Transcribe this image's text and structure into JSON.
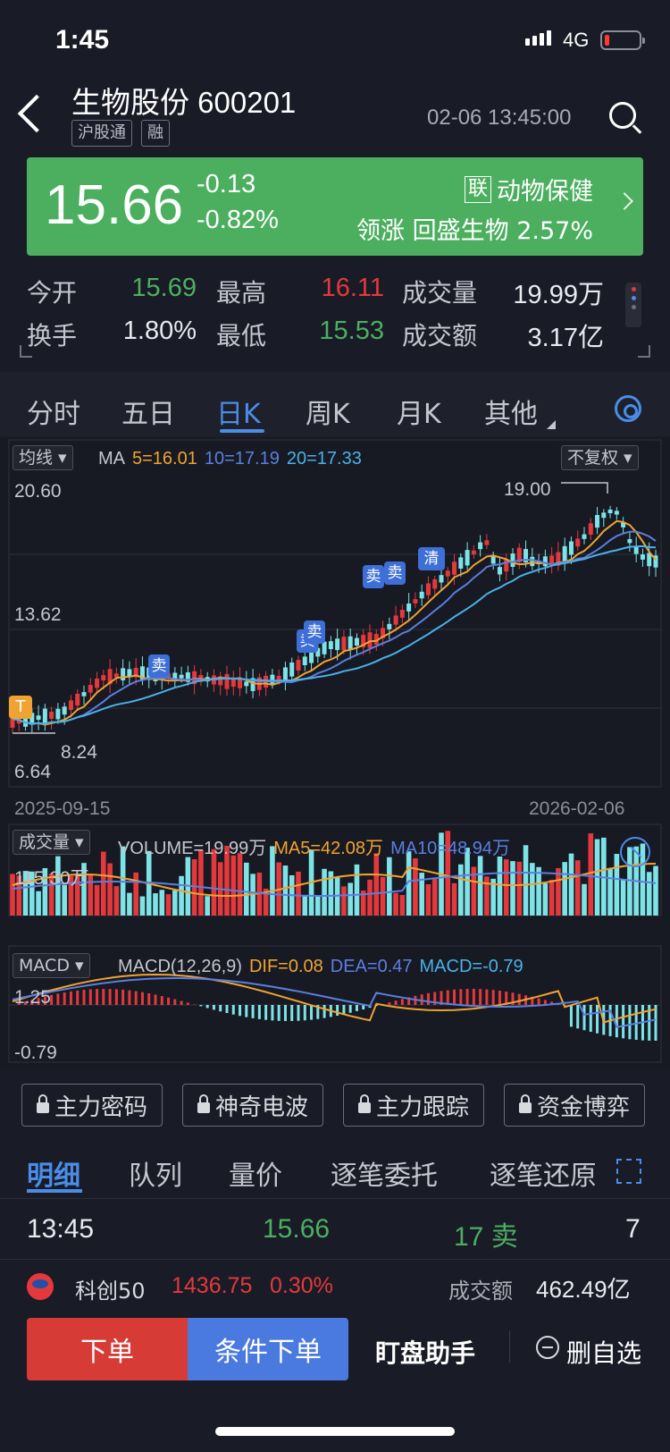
{
  "status": {
    "time": "1:45",
    "network": "4G"
  },
  "header": {
    "stock_name": "生物股份 600201",
    "tags": [
      "沪股通",
      "融"
    ],
    "datetime": "02-06 13:45:00"
  },
  "quote": {
    "price": "15.66",
    "change": "-0.13",
    "change_pct": "-0.82%",
    "sector_badge": "联",
    "sector": "动物保健",
    "leader_label": "领涨",
    "leader": "回盛生物",
    "leader_pct": "2.57%",
    "banner_color": "#4caf5f"
  },
  "stats": {
    "open_label": "今开",
    "open": "15.69",
    "high_label": "最高",
    "high": "16.11",
    "volume_label": "成交量",
    "volume": "19.99万",
    "turnover_label": "换手",
    "turnover": "1.80%",
    "low_label": "最低",
    "low": "15.53",
    "amount_label": "成交额",
    "amount": "3.17亿"
  },
  "tabs": [
    "分时",
    "五日",
    "日K",
    "周K",
    "月K",
    "其他"
  ],
  "active_tab": "日K",
  "kline": {
    "indicator_chip": "均线",
    "ma_label": "MA",
    "ma5": "5=16.01",
    "ma10": "10=17.19",
    "ma20": "20=17.33",
    "adjust_chip": "不复权",
    "y_top": "20.60",
    "y_mid": "13.62",
    "y_bottom": "6.64",
    "max_marker": "19.00",
    "min_marker": "8.24",
    "date_start": "2025-09-15",
    "date_end": "2026-02-06",
    "t_badge": "T",
    "sell_label": "卖",
    "clear_label": "清",
    "colors": {
      "up": "#e4393c",
      "down": "#7ee3e6",
      "ma5": "#f0a330",
      "ma10": "#5b7fe0",
      "ma20": "#4ab1e8"
    }
  },
  "volume": {
    "chip": "成交量",
    "volume_text": "VOLUME=19.99万",
    "ma5_text": "MA5=42.08万",
    "ma10_text": "MA10=48.94万",
    "y_max": "115.30万"
  },
  "macd": {
    "chip": "MACD",
    "params": "MACD(12,26,9)",
    "dif": "DIF=0.08",
    "dea": "DEA=0.47",
    "macd": "MACD=-0.79",
    "y_top": "1.25",
    "y_bottom": "-0.79"
  },
  "tools": [
    "主力密码",
    "神奇电波",
    "主力跟踪",
    "资金博弈"
  ],
  "detail_tabs": [
    "明细",
    "队列",
    "量价",
    "逐笔委托",
    "逐笔还原"
  ],
  "trade": {
    "time": "13:45",
    "price": "15.66",
    "qty": "17 卖",
    "count": "7"
  },
  "index": {
    "name": "科创50",
    "value": "1436.75",
    "pct": "0.30%",
    "amount_label": "成交额",
    "amount": "462.49亿"
  },
  "actions": {
    "order": "下单",
    "conditional": "条件下单",
    "assistant": "盯盘助手",
    "remove": "删自选"
  }
}
